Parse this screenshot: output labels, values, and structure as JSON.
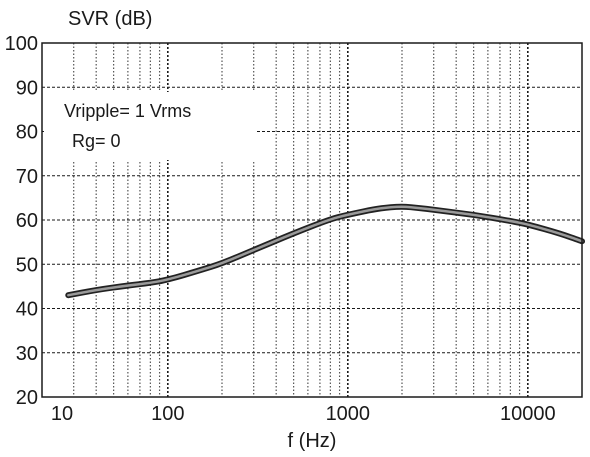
{
  "chart_data": {
    "type": "line",
    "title": "",
    "ylabel": "SVR (dB)",
    "xlabel": "f (Hz)",
    "xscale": "log",
    "xlim": [
      20,
      20000
    ],
    "ylim": [
      20,
      100
    ],
    "x_ticks": [
      {
        "value": 10,
        "label": "10"
      },
      {
        "value": 100,
        "label": "100"
      },
      {
        "value": 1000,
        "label": "1000"
      },
      {
        "value": 10000,
        "label": "10000"
      }
    ],
    "y_ticks": [
      {
        "value": 100,
        "label": "100"
      },
      {
        "value": 90,
        "label": "90"
      },
      {
        "value": 80,
        "label": "80"
      },
      {
        "value": 70,
        "label": "70"
      },
      {
        "value": 60,
        "label": "60"
      },
      {
        "value": 50,
        "label": "50"
      },
      {
        "value": 40,
        "label": "40"
      },
      {
        "value": 30,
        "label": "30"
      },
      {
        "value": 20,
        "label": "20"
      }
    ],
    "grid": true,
    "annotations": [
      "Vripple= 1 Vrms",
      "Rg= 0"
    ],
    "series": [
      {
        "color": "#555555",
        "x": [
          28,
          40,
          60,
          80,
          100,
          150,
          200,
          300,
          500,
          800,
          1000,
          1500,
          2000,
          2500,
          3000,
          5000,
          8000,
          10000,
          15000,
          20000
        ],
        "y": [
          43,
          44.2,
          45.2,
          45.8,
          46.5,
          48.6,
          50.2,
          53.2,
          57,
          60.2,
          61.2,
          62.7,
          63.1,
          62.7,
          62.3,
          61.2,
          59.8,
          59,
          57,
          55.2
        ]
      }
    ]
  }
}
